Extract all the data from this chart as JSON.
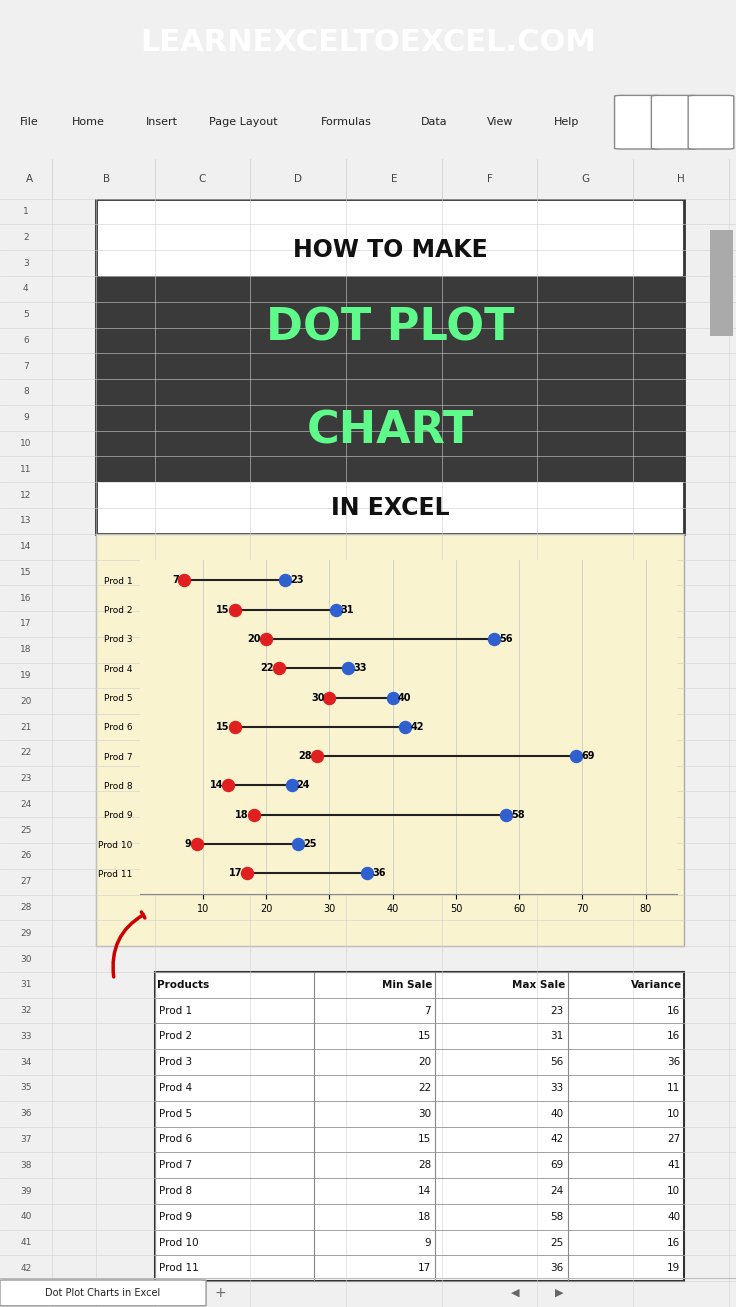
{
  "header_text": "LEARNEXCELTOEXCEL.COM",
  "header_bg": "#2d6a2d",
  "header_text_color": "#ffffff",
  "title_bg_dark": "#3a3a3a",
  "title_text_green": "#5efa8a",
  "excel_bg": "#f0f0f0",
  "chart_bg": "#faf3d0",
  "products": [
    "Prod 1",
    "Prod 2",
    "Prod 3",
    "Prod 4",
    "Prod 5",
    "Prod 6",
    "Prod 7",
    "Prod 8",
    "Prod 9",
    "Prod 10",
    "Prod 11"
  ],
  "min_sale": [
    7,
    15,
    20,
    22,
    30,
    15,
    28,
    14,
    18,
    9,
    17
  ],
  "max_sale": [
    23,
    31,
    56,
    33,
    40,
    42,
    69,
    24,
    58,
    25,
    36
  ],
  "variance": [
    16,
    16,
    36,
    11,
    10,
    27,
    41,
    10,
    40,
    16,
    19
  ],
  "dot_red": "#e02020",
  "dot_blue": "#3060d0",
  "line_color": "#222222",
  "xlim": [
    0,
    85
  ],
  "xticks": [
    10,
    20,
    30,
    40,
    50,
    60,
    70,
    80
  ],
  "arrow_color": "#cc0000",
  "col_headers": [
    "Products",
    "Min Sale",
    "Max Sale",
    "Variance"
  ]
}
